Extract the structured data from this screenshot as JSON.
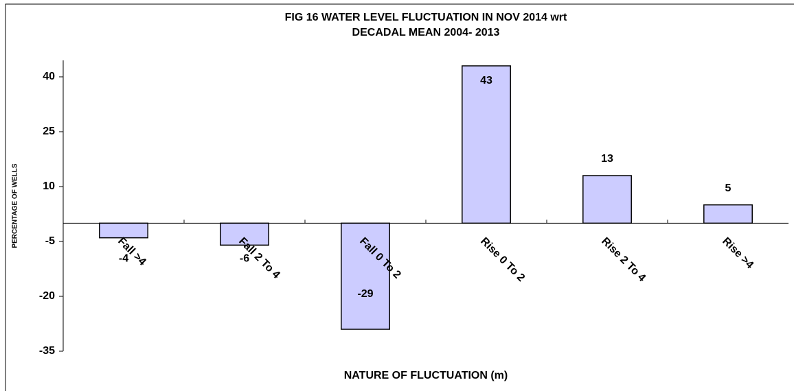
{
  "chart_data": {
    "type": "bar",
    "title": [
      "FIG 16  WATER LEVEL FLUCTUATION IN NOV 2014 wrt",
      "DECADAL MEAN 2004- 2013"
    ],
    "x_label": "NATURE OF FLUCTUATION (m)",
    "y_label": "PERCENTAGE OF WELLS",
    "categories": [
      "Fall >4",
      "Fall 2 To 4",
      "Fall 0 To 2",
      "Rise 0 To 2",
      "Rise 2 To 4",
      "Rise >4"
    ],
    "values": [
      -4,
      -6,
      -29,
      43,
      13,
      5
    ],
    "color": "#ccccff",
    "ylim": [
      -35,
      44.5
    ],
    "yticks": [
      -35,
      -20,
      -5,
      10,
      25,
      40
    ],
    "grid": false
  }
}
